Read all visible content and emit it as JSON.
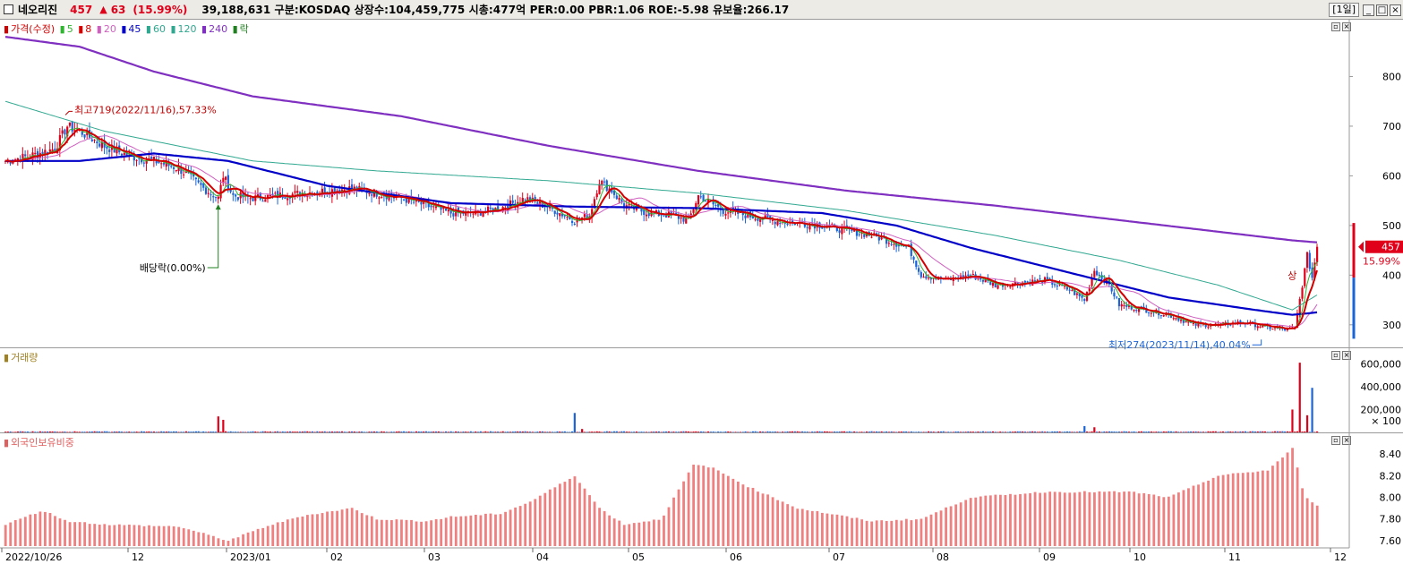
{
  "header": {
    "stock_name": "네오리진",
    "price": "457",
    "arrow": "▲",
    "change": "63",
    "change_pct": "(15.99%)",
    "info": "39,188,631  구분:KOSDAQ 상장수:104,459,775 시총:477억 PER:0.00 PBR:1.06 ROE:-5.98 유보율:266.17",
    "period_button": "[1일]",
    "window_buttons": [
      "_",
      "□",
      "×"
    ]
  },
  "price_panel": {
    "legend": [
      {
        "label": "가격(수정)",
        "color": "#d40000"
      },
      {
        "label": "5",
        "color": "#2fb52f"
      },
      {
        "label": "8",
        "color": "#d40000"
      },
      {
        "label": "20",
        "color": "#d060c0"
      },
      {
        "label": "45",
        "color": "#0000c8"
      },
      {
        "label": "60",
        "color": "#30a890"
      },
      {
        "label": "120",
        "color": "#30a890"
      },
      {
        "label": "240",
        "color": "#8030c0"
      },
      {
        "label": "락",
        "color": "#208020"
      }
    ],
    "y_ticks": [
      "800",
      "700",
      "600",
      "500",
      "400",
      "300"
    ],
    "current_price_label": "457",
    "current_pct_label": "15.99%",
    "annotation_high": "최고719(2022/11/16),57.33%",
    "annotation_dividend": "배당락(0.00%)",
    "annotation_low": "최저274(2023/11/14),40.04%",
    "annotation_up": "상"
  },
  "volume_panel": {
    "legend": "거래량",
    "y_ticks": [
      "600,000",
      "400,000",
      "200,000",
      "× 100"
    ]
  },
  "foreign_panel": {
    "legend": "외국인보유비중",
    "y_ticks": [
      "8.40",
      "8.20",
      "8.00",
      "7.80",
      "7.60"
    ]
  },
  "x_axis": {
    "labels": [
      "2022/10/26",
      "12",
      "2023/01",
      "02",
      "03",
      "04",
      "05",
      "06",
      "07",
      "08",
      "09",
      "10",
      "11",
      "12"
    ]
  },
  "colors": {
    "up": "#e0001a",
    "down": "#1a64d8",
    "ma5": "#2fb52f",
    "ma8": "#d40000",
    "ma20": "#d060c0",
    "ma45": "#0000c8",
    "ma120": "#30a890",
    "ma240": "#8030c0",
    "foreign_bar": "#f07f7f"
  },
  "chart_data": {
    "type": "candlestick",
    "price_anchors": [
      [
        0,
        630
      ],
      [
        10,
        640
      ],
      [
        20,
        655
      ],
      [
        25,
        700
      ],
      [
        30,
        690
      ],
      [
        40,
        660
      ],
      [
        50,
        640
      ],
      [
        60,
        630
      ],
      [
        70,
        615
      ],
      [
        80,
        575
      ],
      [
        86,
        555
      ],
      [
        88,
        600
      ],
      [
        92,
        560
      ],
      [
        100,
        555
      ],
      [
        110,
        560
      ],
      [
        120,
        565
      ],
      [
        130,
        570
      ],
      [
        140,
        575
      ],
      [
        150,
        565
      ],
      [
        160,
        555
      ],
      [
        170,
        540
      ],
      [
        180,
        525
      ],
      [
        190,
        525
      ],
      [
        200,
        535
      ],
      [
        210,
        555
      ],
      [
        220,
        535
      ],
      [
        230,
        510
      ],
      [
        236,
        520
      ],
      [
        240,
        590
      ],
      [
        245,
        570
      ],
      [
        250,
        540
      ],
      [
        260,
        525
      ],
      [
        270,
        520
      ],
      [
        276,
        510
      ],
      [
        280,
        560
      ],
      [
        290,
        530
      ],
      [
        300,
        520
      ],
      [
        310,
        510
      ],
      [
        320,
        505
      ],
      [
        330,
        500
      ],
      [
        340,
        490
      ],
      [
        350,
        480
      ],
      [
        365,
        455
      ],
      [
        370,
        400
      ],
      [
        380,
        390
      ],
      [
        390,
        400
      ],
      [
        400,
        380
      ],
      [
        410,
        385
      ],
      [
        420,
        390
      ],
      [
        430,
        370
      ],
      [
        436,
        350
      ],
      [
        440,
        410
      ],
      [
        446,
        380
      ],
      [
        450,
        340
      ],
      [
        460,
        330
      ],
      [
        470,
        320
      ],
      [
        480,
        300
      ],
      [
        490,
        300
      ],
      [
        500,
        305
      ],
      [
        510,
        295
      ],
      [
        518,
        290
      ],
      [
        521,
        293
      ],
      [
        524,
        380
      ],
      [
        526,
        440
      ],
      [
        528,
        395
      ],
      [
        530,
        457
      ]
    ],
    "ma_anchors": {
      "ma240": [
        [
          0,
          880
        ],
        [
          30,
          860
        ],
        [
          60,
          810
        ],
        [
          100,
          760
        ],
        [
          160,
          720
        ],
        [
          220,
          660
        ],
        [
          280,
          610
        ],
        [
          340,
          570
        ],
        [
          400,
          540
        ],
        [
          460,
          505
        ],
        [
          520,
          470
        ],
        [
          530,
          466
        ]
      ],
      "ma120": [
        [
          0,
          750
        ],
        [
          40,
          690
        ],
        [
          100,
          630
        ],
        [
          150,
          610
        ],
        [
          220,
          590
        ],
        [
          280,
          565
        ],
        [
          340,
          530
        ],
        [
          400,
          480
        ],
        [
          450,
          430
        ],
        [
          490,
          380
        ],
        [
          520,
          330
        ],
        [
          530,
          360
        ]
      ],
      "ma45": [
        [
          0,
          630
        ],
        [
          30,
          630
        ],
        [
          60,
          645
        ],
        [
          90,
          630
        ],
        [
          130,
          580
        ],
        [
          180,
          545
        ],
        [
          230,
          538
        ],
        [
          280,
          535
        ],
        [
          330,
          525
        ],
        [
          360,
          500
        ],
        [
          390,
          455
        ],
        [
          430,
          405
        ],
        [
          470,
          355
        ],
        [
          505,
          330
        ],
        [
          520,
          320
        ],
        [
          530,
          325
        ]
      ]
    },
    "volume_spikes": [
      [
        86,
        1.4
      ],
      [
        88,
        1.1
      ],
      [
        230,
        1.7
      ],
      [
        233,
        0.3
      ],
      [
        436,
        0.55
      ],
      [
        440,
        0.45
      ],
      [
        520,
        2.0
      ],
      [
        523,
        6.1
      ],
      [
        526,
        1.5
      ],
      [
        528,
        3.9
      ]
    ],
    "volume_range": [
      0,
      6.5
    ],
    "foreign_anchors": [
      [
        0,
        7.75
      ],
      [
        15,
        7.88
      ],
      [
        25,
        7.78
      ],
      [
        40,
        7.75
      ],
      [
        70,
        7.73
      ],
      [
        90,
        7.6
      ],
      [
        105,
        7.73
      ],
      [
        120,
        7.83
      ],
      [
        140,
        7.9
      ],
      [
        150,
        7.8
      ],
      [
        170,
        7.78
      ],
      [
        180,
        7.82
      ],
      [
        200,
        7.85
      ],
      [
        212,
        7.96
      ],
      [
        230,
        8.2
      ],
      [
        240,
        7.9
      ],
      [
        250,
        7.75
      ],
      [
        265,
        7.8
      ],
      [
        278,
        8.3
      ],
      [
        285,
        8.28
      ],
      [
        300,
        8.1
      ],
      [
        320,
        7.9
      ],
      [
        350,
        7.78
      ],
      [
        370,
        7.8
      ],
      [
        390,
        8.0
      ],
      [
        420,
        8.05
      ],
      [
        440,
        8.05
      ],
      [
        455,
        8.05
      ],
      [
        470,
        8.0
      ],
      [
        490,
        8.2
      ],
      [
        510,
        8.25
      ],
      [
        520,
        8.45
      ],
      [
        525,
        8.0
      ],
      [
        530,
        7.93
      ]
    ],
    "foreign_range": [
      7.55,
      8.5
    ],
    "price_range": [
      260,
      900
    ],
    "num_days": 530
  }
}
